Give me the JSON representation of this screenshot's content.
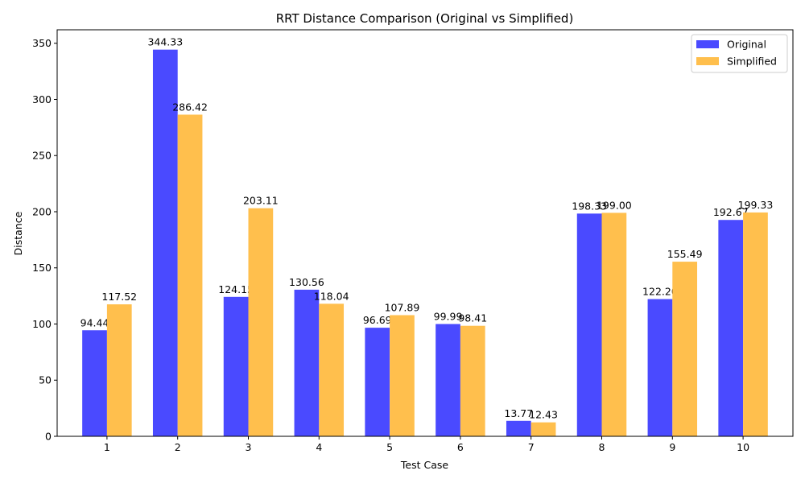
{
  "chart_data": {
    "type": "bar",
    "title": "RRT Distance Comparison (Original vs Simplified)",
    "xlabel": "Test Case",
    "ylabel": "Distance",
    "categories": [
      "1",
      "2",
      "3",
      "4",
      "5",
      "6",
      "7",
      "8",
      "9",
      "10"
    ],
    "ylim": [
      0,
      362
    ],
    "yticks": [
      0,
      50,
      100,
      150,
      200,
      250,
      300,
      350
    ],
    "grid": false,
    "legend_position": "top-right",
    "series": [
      {
        "name": "Original",
        "color": "#4a4aff",
        "values": [
          94.44,
          344.33,
          124.15,
          130.56,
          96.69,
          99.99,
          13.77,
          198.33,
          122.2,
          192.67
        ],
        "labels": [
          "94.44",
          "344.33",
          "124.15",
          "130.56",
          "96.69",
          "99.99",
          "13.77",
          "198.33",
          "122.20",
          "192.67"
        ]
      },
      {
        "name": "Simplified",
        "color": "#ffbf4d",
        "values": [
          117.52,
          286.42,
          203.11,
          118.04,
          107.89,
          98.41,
          12.43,
          199.0,
          155.49,
          199.33
        ],
        "labels": [
          "117.52",
          "286.42",
          "203.11",
          "118.04",
          "107.89",
          "98.41",
          "12.43",
          "199.00",
          "155.49",
          "199.33"
        ]
      }
    ]
  }
}
